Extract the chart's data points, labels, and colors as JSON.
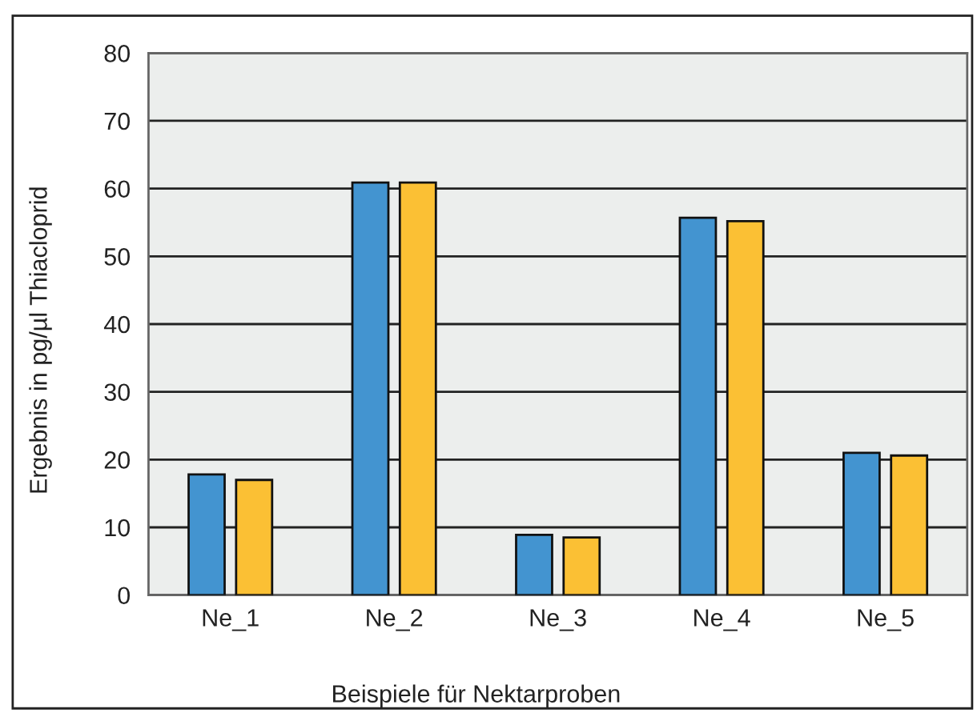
{
  "chart_data": {
    "type": "bar",
    "categories": [
      "Ne_1",
      "Ne_2",
      "Ne_3",
      "Ne_4",
      "Ne_5"
    ],
    "series": [
      {
        "color": "#4394d0",
        "values": [
          17.8,
          60.9,
          8.9,
          55.7,
          21.0
        ]
      },
      {
        "color": "#fbc034",
        "values": [
          17.0,
          60.9,
          8.5,
          55.2,
          20.6
        ]
      }
    ],
    "xlabel": "Beispiele für Nektarproben",
    "ylabel": "Ergebnis in pg/µl Thiacloprid",
    "ylim": [
      0,
      80
    ],
    "yticks": [
      0,
      10,
      20,
      30,
      40,
      50,
      60,
      70,
      80
    ],
    "grid": "y"
  }
}
